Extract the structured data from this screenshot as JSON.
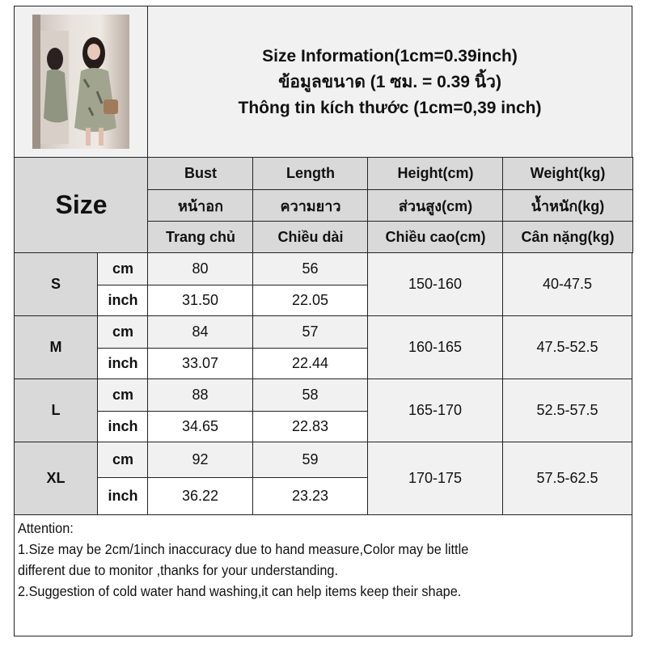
{
  "title": {
    "line1": "Size Information(1cm=0.39inch)",
    "line2": "ข้อมูลขนาด (1 ซม. = 0.39 นิ้ว)",
    "line3": "Thông tin kích thước (1cm=0,39 inch)"
  },
  "size_label": "Size",
  "headers": [
    {
      "en": "Bust",
      "th": "หน้าอก",
      "vi": "Trang chủ"
    },
    {
      "en": "Length",
      "th": "ความยาว",
      "vi": "Chiều dài"
    },
    {
      "en": "Height(cm)",
      "th": "ส่วนสูง(cm)",
      "vi": "Chiều cao(cm)"
    },
    {
      "en": "Weight(kg)",
      "th": "น้ำหนัก(kg)",
      "vi": "Cân nặng(kg)"
    }
  ],
  "units": {
    "cm": "cm",
    "inch": "inch"
  },
  "rows": [
    {
      "size": "S",
      "bust_cm": "80",
      "length_cm": "56",
      "bust_inch": "31.50",
      "length_inch": "22.05",
      "height": "150-160",
      "weight": "40-47.5"
    },
    {
      "size": "M",
      "bust_cm": "84",
      "length_cm": "57",
      "bust_inch": "33.07",
      "length_inch": "22.44",
      "height": "160-165",
      "weight": "47.5-52.5"
    },
    {
      "size": "L",
      "bust_cm": "88",
      "length_cm": "58",
      "bust_inch": "34.65",
      "length_inch": "22.83",
      "height": "165-170",
      "weight": "52.5-57.5"
    },
    {
      "size": "XL",
      "bust_cm": "92",
      "length_cm": "59",
      "bust_inch": "36.22",
      "length_inch": "23.23",
      "height": "170-175",
      "weight": "57.5-62.5"
    }
  ],
  "notes": {
    "heading": "Attention:",
    "line1": "1.Size may be 2cm/1inch inaccuracy due to hand measure,Color may be little",
    "line2": "different due to monitor ,thanks for your understanding.",
    "line3": "2.Suggestion of cold water hand washing,it can help items keep their shape."
  }
}
